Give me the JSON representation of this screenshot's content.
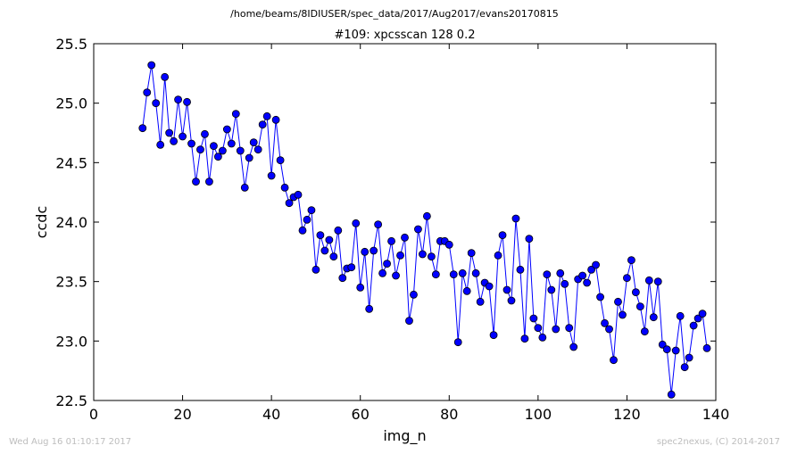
{
  "figure": {
    "path_title": "/home/beams/8IDIUSER/spec_data/2017/Aug2017/evans20170815",
    "footer_left": "Wed Aug 16 01:10:17 2017",
    "footer_right": "spec2nexus, (C) 2014-2017"
  },
  "chart_data": {
    "type": "line",
    "title": "#109: xpcsscan 128 0.2",
    "xlabel": "img_n",
    "ylabel": "ccdc",
    "xlim": [
      0,
      140
    ],
    "ylim": [
      22.5,
      25.5
    ],
    "xticks": [
      0,
      20,
      40,
      60,
      80,
      100,
      120,
      140
    ],
    "yticks": [
      22.5,
      23.0,
      23.5,
      24.0,
      24.5,
      25.0,
      25.5
    ],
    "xtick_labels": [
      "0",
      "20",
      "40",
      "60",
      "80",
      "100",
      "120",
      "140"
    ],
    "ytick_labels": [
      "22.5",
      "23.0",
      "23.5",
      "24.0",
      "24.5",
      "25.0",
      "25.5"
    ],
    "line_color": "#0000ff",
    "marker_color": "#0000ff",
    "marker_edge": "#000000",
    "series": [
      {
        "x": [
          11,
          12,
          13,
          14,
          15,
          16,
          17,
          18,
          19,
          20,
          21,
          22,
          23,
          24,
          25,
          26,
          27,
          28,
          29,
          30,
          31,
          32,
          33,
          34,
          35,
          36,
          37,
          38,
          39,
          40,
          41,
          42,
          43,
          44,
          45,
          46,
          47,
          48,
          49,
          50,
          51,
          52,
          53,
          54,
          55,
          56,
          57,
          58,
          59,
          60,
          61,
          62,
          63,
          64,
          65,
          66,
          67,
          68,
          69,
          70,
          71,
          72,
          73,
          74,
          75,
          76,
          77,
          78,
          79,
          80,
          81,
          82,
          83,
          84,
          85,
          86,
          87,
          88,
          89,
          90,
          91,
          92,
          93,
          94,
          95,
          96,
          97,
          98,
          99,
          100,
          101,
          102,
          103,
          104,
          105,
          106,
          107,
          108,
          109,
          110,
          111,
          112,
          113,
          114,
          115,
          116,
          117,
          118,
          119,
          120,
          121,
          122,
          123,
          124,
          125,
          126,
          127,
          128,
          129,
          130,
          131,
          132,
          133,
          134,
          135,
          136,
          137,
          138
        ],
        "y": [
          24.79,
          25.09,
          25.32,
          25.0,
          24.65,
          25.22,
          24.75,
          24.68,
          25.03,
          24.72,
          25.01,
          24.66,
          24.34,
          24.61,
          24.74,
          24.34,
          24.64,
          24.55,
          24.6,
          24.78,
          24.66,
          24.91,
          24.6,
          24.29,
          24.54,
          24.67,
          24.61,
          24.82,
          24.89,
          24.39,
          24.86,
          24.52,
          24.29,
          24.16,
          24.21,
          24.23,
          23.93,
          24.02,
          24.1,
          23.6,
          23.89,
          23.76,
          23.85,
          23.71,
          23.93,
          23.53,
          23.61,
          23.62,
          23.99,
          23.45,
          23.75,
          23.27,
          23.76,
          23.98,
          23.57,
          23.65,
          23.84,
          23.55,
          23.72,
          23.87,
          23.17,
          23.39,
          23.94,
          23.73,
          24.05,
          23.71,
          23.56,
          23.84,
          23.84,
          23.81,
          23.56,
          22.99,
          23.57,
          23.42,
          23.74,
          23.57,
          23.33,
          23.49,
          23.46,
          23.05,
          23.72,
          23.89,
          23.43,
          23.34,
          24.03,
          23.6,
          23.02,
          23.86,
          23.19,
          23.11,
          23.03,
          23.56,
          23.43,
          23.1,
          23.57,
          23.48,
          23.11,
          22.95,
          23.52,
          23.55,
          23.49,
          23.6,
          23.64,
          23.37,
          23.15,
          23.1,
          22.84,
          23.33,
          23.22,
          23.53,
          23.68,
          23.41,
          23.29,
          23.08,
          23.51,
          23.2,
          23.5,
          22.97,
          22.93,
          22.55,
          22.92,
          23.21,
          22.78,
          22.86,
          23.13,
          23.19,
          23.23,
          22.94
        ]
      }
    ]
  }
}
